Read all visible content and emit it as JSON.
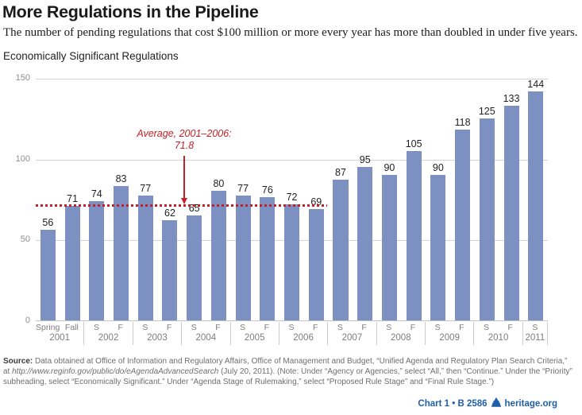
{
  "header": {
    "title": "More Regulations in the Pipeline",
    "subtitle": "The number of pending regulations that cost $100 million or more every year has more than doubled in under five years."
  },
  "chart_data": {
    "type": "bar",
    "title": "Economically Significant Regulations",
    "xlabel": "",
    "ylabel": "",
    "ylim": [
      0,
      150
    ],
    "yticks": [
      150,
      100,
      50,
      0
    ],
    "grid": true,
    "bar_color": "#7C90C1",
    "grid_color": "#d4d4d4",
    "categories": [
      "Spring 2001",
      "Fall 2001",
      "S 2002",
      "F 2002",
      "S 2003",
      "F 2003",
      "S 2004",
      "F 2004",
      "S 2005",
      "F 2005",
      "S 2006",
      "F 2006",
      "S 2007",
      "F 2007",
      "S 2008",
      "F 2008",
      "S 2009",
      "F 2009",
      "S 2010",
      "F 2010",
      "S 2011"
    ],
    "values": [
      56,
      71,
      74,
      83,
      77,
      62,
      65,
      80,
      77,
      76,
      72,
      69,
      87,
      95,
      90,
      105,
      90,
      118,
      125,
      133,
      144
    ],
    "year_groups": [
      {
        "year": "2001",
        "seasons": [
          "Spring",
          "Fall"
        ]
      },
      {
        "year": "2002",
        "seasons": [
          "S",
          "F"
        ]
      },
      {
        "year": "2003",
        "seasons": [
          "S",
          "F"
        ]
      },
      {
        "year": "2004",
        "seasons": [
          "S",
          "F"
        ]
      },
      {
        "year": "2005",
        "seasons": [
          "S",
          "F"
        ]
      },
      {
        "year": "2006",
        "seasons": [
          "S",
          "F"
        ]
      },
      {
        "year": "2007",
        "seasons": [
          "S",
          "F"
        ]
      },
      {
        "year": "2008",
        "seasons": [
          "S",
          "F"
        ]
      },
      {
        "year": "2009",
        "seasons": [
          "S",
          "F"
        ]
      },
      {
        "year": "2010",
        "seasons": [
          "S",
          "F"
        ]
      },
      {
        "year": "2011",
        "seasons": [
          "S"
        ]
      }
    ],
    "average_line": {
      "value": 71.8,
      "span_bars": 12,
      "color": "#C32127",
      "label_line1": "Average, 2001–2006:",
      "label_line2": "71.8"
    }
  },
  "footer": {
    "source": {
      "label": "Source:",
      "seg1": " Data obtained at Office of Information and Regulatory Affairs, Office of Management and Budget, “Unified Agenda and Regulatory Plan Search Criteria,”",
      "seg2": "at ",
      "url": "http://www.reginfo.gov/public/do/eAgendaAdvancedSearch",
      "seg3": " (July 20, 2011). (Note: Under “Agency or Agencies,” select “All,” then “Continue.” Under the “Priority”",
      "seg4": "subheading, select “Economically Significant.” Under “Agenda Stage of Rulemaking,” select “Proposed Rule Stage” and “Final Rule Stage.”)"
    },
    "credit": {
      "chart_ref": "Chart 1 • B 2586",
      "site": "heritage.org",
      "color": "#1E5FA9"
    }
  }
}
